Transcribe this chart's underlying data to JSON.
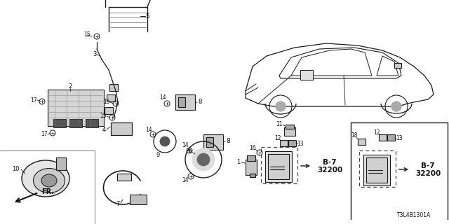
{
  "bg_color": "#ffffff",
  "fig_width": 6.4,
  "fig_height": 3.2,
  "dpi": 100,
  "line_color": "#1a1a1a",
  "text_color": "#111111",
  "diagram_code": "T3L4B1301A",
  "fr_label": "FR."
}
